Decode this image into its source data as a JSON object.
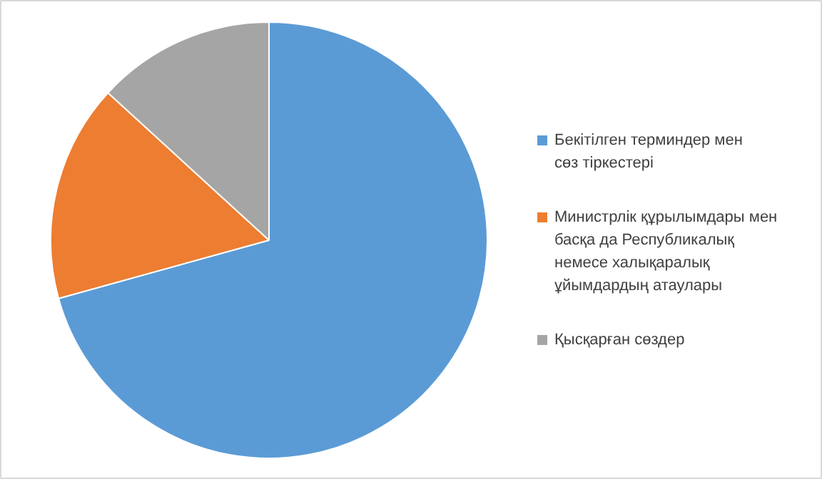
{
  "chart_data": {
    "type": "pie",
    "categories": [
      "Бекітілген терминдер  мен сөз тіркестері",
      "Министрлік құрылымдары мен басқа да Республикалық немесе  халықаралық ұйымдардың атаулары",
      "Қысқарған сөздер"
    ],
    "values": [
      70.7,
      16.1,
      13.2
    ],
    "colors": [
      "#5b9bd5",
      "#ed7d31",
      "#a5a5a5"
    ],
    "legend": "right"
  }
}
